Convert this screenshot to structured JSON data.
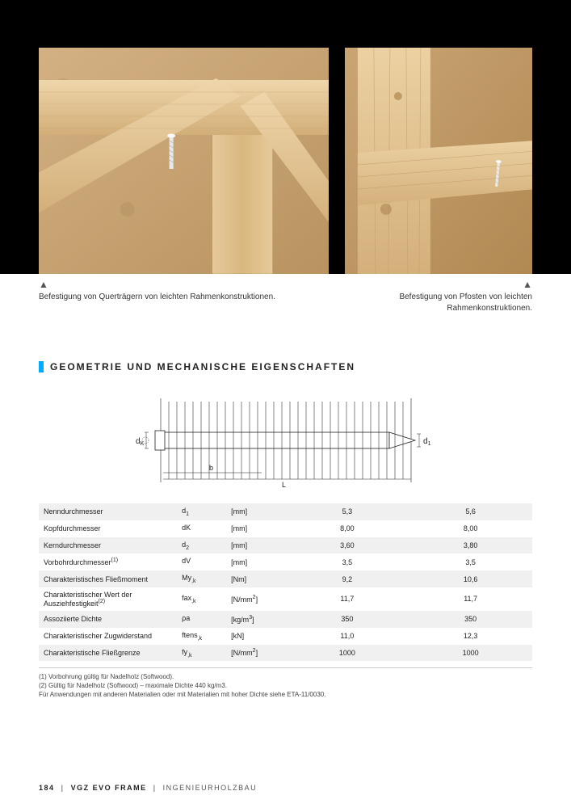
{
  "captions": {
    "left": "Befestigung von Querträgern von leichten Rahmenkonstruktionen.",
    "right": "Befestigung von Pfosten von leichten Rahmenkonstruktionen."
  },
  "section_title": "GEOMETRIE UND MECHANISCHE EIGENSCHAFTEN",
  "diagram_labels": {
    "left": "dK",
    "right": "d1",
    "bottom_left": "b",
    "bottom_right": "L"
  },
  "table": {
    "rows": [
      {
        "label": "Nenndurchmesser",
        "sym": "d1",
        "unit": "[mm]",
        "v1": "5,3",
        "v2": "5,6"
      },
      {
        "label": "Kopfdurchmesser",
        "sym": "dK",
        "unit": "[mm]",
        "v1": "8,00",
        "v2": "8,00"
      },
      {
        "label": "Kerndurchmesser",
        "sym": "d2",
        "unit": "[mm]",
        "v1": "3,60",
        "v2": "3,80"
      },
      {
        "label": "Vorbohrdurchmesser(1)",
        "sym": "dV",
        "unit": "[mm]",
        "v1": "3,5",
        "v2": "3,5"
      },
      {
        "label": "Charakteristisches Fließmoment",
        "sym": "My,k",
        "unit": "[Nm]",
        "v1": "9,2",
        "v2": "10,6"
      },
      {
        "label": "Charakteristischer Wert der Ausziehfestigkeit(2)",
        "sym": "fax,k",
        "unit": "[N/mm2]",
        "v1": "11,7",
        "v2": "11,7"
      },
      {
        "label": "Assoziierte Dichte",
        "sym": "ρa",
        "unit": "[kg/m3]",
        "v1": "350",
        "v2": "350"
      },
      {
        "label": "Charakteristischer Zugwiderstand",
        "sym": "ftens,k",
        "unit": "[kN]",
        "v1": "11,0",
        "v2": "12,3"
      },
      {
        "label": "Charakteristische Fließgrenze",
        "sym": "fy,k",
        "unit": "[N/mm2]",
        "v1": "1000",
        "v2": "1000"
      }
    ]
  },
  "footnotes": {
    "n1": "(1) Vorbohrung gültig für Nadelholz (Softwood).",
    "n2": "(2) Gültig für Nadelholz (Softwood) – maximale Dichte 440 kg/m3.",
    "n3": "Für Anwendungen mit anderen Materialien oder mit Materialien mit hoher Dichte siehe ETA-11/0030."
  },
  "footer": {
    "page": "184",
    "product": "VGZ EVO FRAME",
    "category": "INGENIEURHOLZBAU"
  },
  "colors": {
    "accent": "#00aaff",
    "row_alt": "#f0f0f0",
    "text": "#222222"
  }
}
